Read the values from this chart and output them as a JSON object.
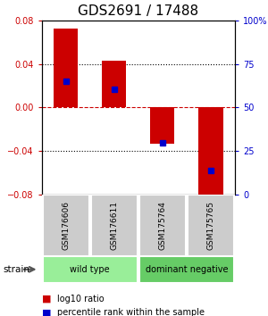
{
  "title": "GDS2691 / 17488",
  "samples": [
    "GSM176606",
    "GSM176611",
    "GSM175764",
    "GSM175765"
  ],
  "log10_ratios": [
    0.073,
    0.043,
    -0.033,
    -0.082
  ],
  "percentile_ranks": [
    0.65,
    0.605,
    0.295,
    0.135
  ],
  "ylim": [
    -0.08,
    0.08
  ],
  "yticks": [
    -0.08,
    -0.04,
    0,
    0.04,
    0.08
  ],
  "right_yticks": [
    0,
    25,
    50,
    75,
    100
  ],
  "right_ylim": [
    0,
    100
  ],
  "bar_color": "#cc0000",
  "dot_color": "#0000cc",
  "groups": [
    {
      "label": "wild type",
      "indices": [
        0,
        1
      ],
      "color": "#99ee99"
    },
    {
      "label": "dominant negative",
      "indices": [
        2,
        3
      ],
      "color": "#66cc66"
    }
  ],
  "legend_bar_label": "log10 ratio",
  "legend_dot_label": "percentile rank within the sample",
  "left_axis_color": "#cc0000",
  "right_axis_color": "#0000cc",
  "zero_line_color": "#cc0000",
  "grid_color": "#000000",
  "bg_color": "#ffffff",
  "sample_box_color": "#cccccc",
  "bar_width": 0.5,
  "title_fontsize": 11,
  "tick_fontsize": 7,
  "sample_fontsize": 6.5,
  "group_fontsize": 7,
  "legend_fontsize": 7
}
